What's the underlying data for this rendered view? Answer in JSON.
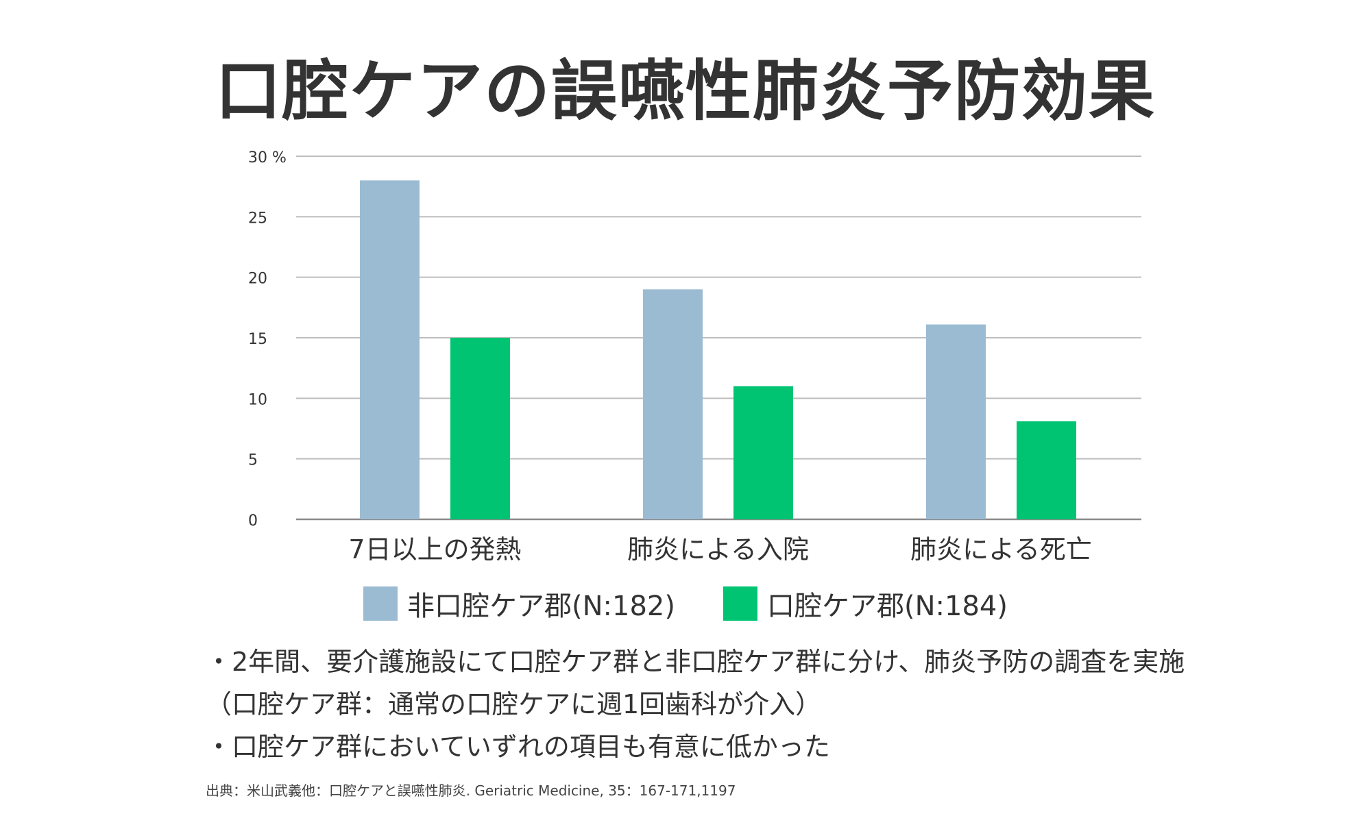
{
  "title": "口腔ケアの誤嚥性肺炎予防効果",
  "chart_data": {
    "type": "bar",
    "categories": [
      "7日以上の発熱",
      "肺炎による入院",
      "肺炎による死亡"
    ],
    "series": [
      {
        "name": "非口腔ケア郡(N:182)",
        "values": [
          28,
          19,
          16.1
        ],
        "color": "#9bbbd3"
      },
      {
        "name": "口腔ケア郡(N:184)",
        "values": [
          15,
          11,
          8.1
        ],
        "color": "#00c472"
      }
    ],
    "yticks": [
      "0",
      "5",
      "10",
      "15",
      "20",
      "25",
      "30 %"
    ],
    "ylim": [
      0,
      30
    ],
    "grid": true,
    "legend": "bottom"
  },
  "notes": [
    "・2年間、要介護施設にて口腔ケア群と非口腔ケア群に分け、肺炎予防の調査を実施",
    "（口腔ケア群：通常の口腔ケアに週1回歯科が介入）",
    "・口腔ケア群においていずれの項目も有意に低かった"
  ],
  "source": "出典：米山武義他：口腔ケアと誤嚥性肺炎. Geriatric Medicine, 35：167-171,1197"
}
